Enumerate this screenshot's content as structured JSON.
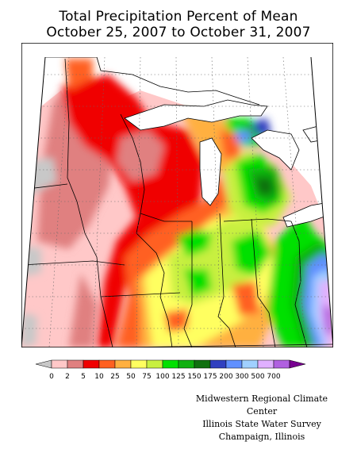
{
  "title": {
    "line1": "Total Precipitation Percent of Mean",
    "line2": "October 25, 2007 to October 31, 2007"
  },
  "legend": {
    "labels": [
      "0",
      "2",
      "5",
      "10",
      "25",
      "50",
      "75",
      "100",
      "125",
      "150",
      "175",
      "200",
      "300",
      "500",
      "700"
    ],
    "colors": [
      "#c8c8c8",
      "#ffc8c8",
      "#e08080",
      "#f00000",
      "#ff6020",
      "#ffb040",
      "#ffff60",
      "#c8f040",
      "#00e000",
      "#10b010",
      "#107010",
      "#3040c0",
      "#6090ff",
      "#a0d0ff",
      "#e0b0ff",
      "#b060e0",
      "#780090"
    ]
  },
  "credits": {
    "line1": "Midwestern Regional Climate Center",
    "line2": "Illinois State Water Survey",
    "line3": "Champaign, Illinois"
  }
}
